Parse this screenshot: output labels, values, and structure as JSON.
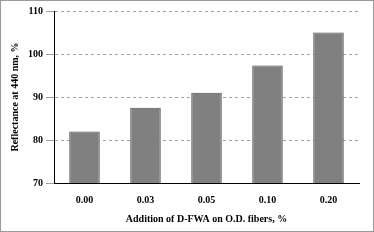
{
  "chart_data": {
    "type": "bar",
    "x_label": "Addition of D-FWA on O.D. fibers, %",
    "y_label": "Reflectance at 440 nm, %",
    "categories": [
      "0.00",
      "0.03",
      "0.05",
      "0.10",
      "0.20"
    ],
    "values": [
      82,
      87.5,
      91,
      97.3,
      105
    ],
    "color": "#808080",
    "ylim": [
      70,
      110
    ],
    "yticks": [
      70,
      80,
      90,
      100,
      110
    ],
    "grid": true
  }
}
